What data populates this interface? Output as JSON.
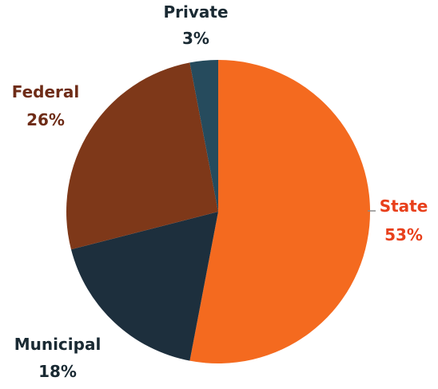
{
  "chart_data": {
    "type": "pie",
    "title": "",
    "slices": [
      {
        "label": "State",
        "value": 53,
        "value_label": "53%",
        "color": "#f46a1f",
        "label_color": "#e8401c"
      },
      {
        "label": "Municipal",
        "value": 18,
        "value_label": "18%",
        "color": "#1d2f3d",
        "label_color": "#1a2a33"
      },
      {
        "label": "Federal",
        "value": 26,
        "value_label": "26%",
        "color": "#7e3819",
        "label_color": "#6e2c17"
      },
      {
        "label": "Private",
        "value": 3,
        "value_label": "3%",
        "color": "#264b5d",
        "label_color": "#1a2a33"
      }
    ],
    "start_angle_deg": 0,
    "direction": "clockwise",
    "legend": "none",
    "label_placement": "outside"
  }
}
